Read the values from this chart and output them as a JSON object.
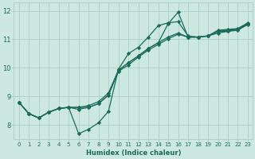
{
  "xlabel": "Humidex (Indice chaleur)",
  "bg_color": "#cde8e0",
  "grid_color": "#aacec6",
  "line_color": "#1a6b5a",
  "xlim": [
    -0.5,
    23.5
  ],
  "ylim": [
    7.5,
    12.3
  ],
  "yticks": [
    8,
    9,
    10,
    11,
    12
  ],
  "xticks": [
    0,
    1,
    2,
    3,
    4,
    5,
    6,
    7,
    8,
    9,
    10,
    11,
    12,
    13,
    14,
    15,
    16,
    17,
    18,
    19,
    20,
    21,
    22,
    23
  ],
  "series": [
    {
      "x": [
        0,
        1,
        2,
        3,
        4,
        5,
        6,
        7,
        8,
        9,
        10,
        11,
        12,
        13,
        14,
        15,
        16,
        17,
        18,
        19,
        20,
        21,
        22,
        23
      ],
      "y": [
        8.8,
        8.4,
        8.25,
        8.45,
        8.58,
        8.62,
        7.7,
        7.85,
        8.08,
        8.48,
        9.95,
        10.5,
        10.72,
        11.08,
        11.48,
        11.58,
        11.62,
        11.12,
        11.08,
        11.12,
        11.32,
        11.35,
        11.38,
        11.58
      ]
    },
    {
      "x": [
        0,
        1,
        2,
        3,
        4,
        5,
        6,
        7,
        8,
        9,
        10,
        11,
        12,
        13,
        14,
        15,
        16,
        17,
        18,
        19,
        20,
        21,
        22,
        23
      ],
      "y": [
        8.8,
        8.4,
        8.25,
        8.45,
        8.58,
        8.62,
        8.62,
        8.62,
        8.75,
        9.05,
        9.88,
        10.1,
        10.38,
        10.62,
        10.82,
        11.02,
        11.18,
        11.08,
        11.08,
        11.12,
        11.22,
        11.28,
        11.32,
        11.52
      ]
    },
    {
      "x": [
        0,
        1,
        2,
        3,
        4,
        5,
        6,
        7,
        8,
        9,
        10,
        11,
        12,
        13,
        14,
        15,
        16,
        17,
        18,
        19,
        20,
        21,
        22,
        23
      ],
      "y": [
        8.8,
        8.4,
        8.25,
        8.45,
        8.58,
        8.62,
        8.62,
        8.68,
        8.82,
        9.12,
        9.92,
        10.18,
        10.42,
        10.68,
        10.88,
        11.08,
        11.22,
        11.08,
        11.08,
        11.12,
        11.28,
        11.28,
        11.35,
        11.55
      ]
    },
    {
      "x": [
        0,
        1,
        2,
        3,
        4,
        5,
        6,
        7,
        8,
        9,
        10,
        11,
        12,
        13,
        14,
        15,
        16,
        17,
        18,
        19,
        20,
        21,
        22,
        23
      ],
      "y": [
        8.8,
        8.4,
        8.25,
        8.45,
        8.58,
        8.62,
        8.55,
        8.62,
        8.75,
        9.05,
        9.92,
        10.18,
        10.42,
        10.68,
        10.88,
        11.55,
        11.95,
        11.08,
        11.08,
        11.12,
        11.28,
        11.32,
        11.35,
        11.55
      ]
    }
  ],
  "marker": "D",
  "markersize": 2.2,
  "linewidth": 0.9
}
